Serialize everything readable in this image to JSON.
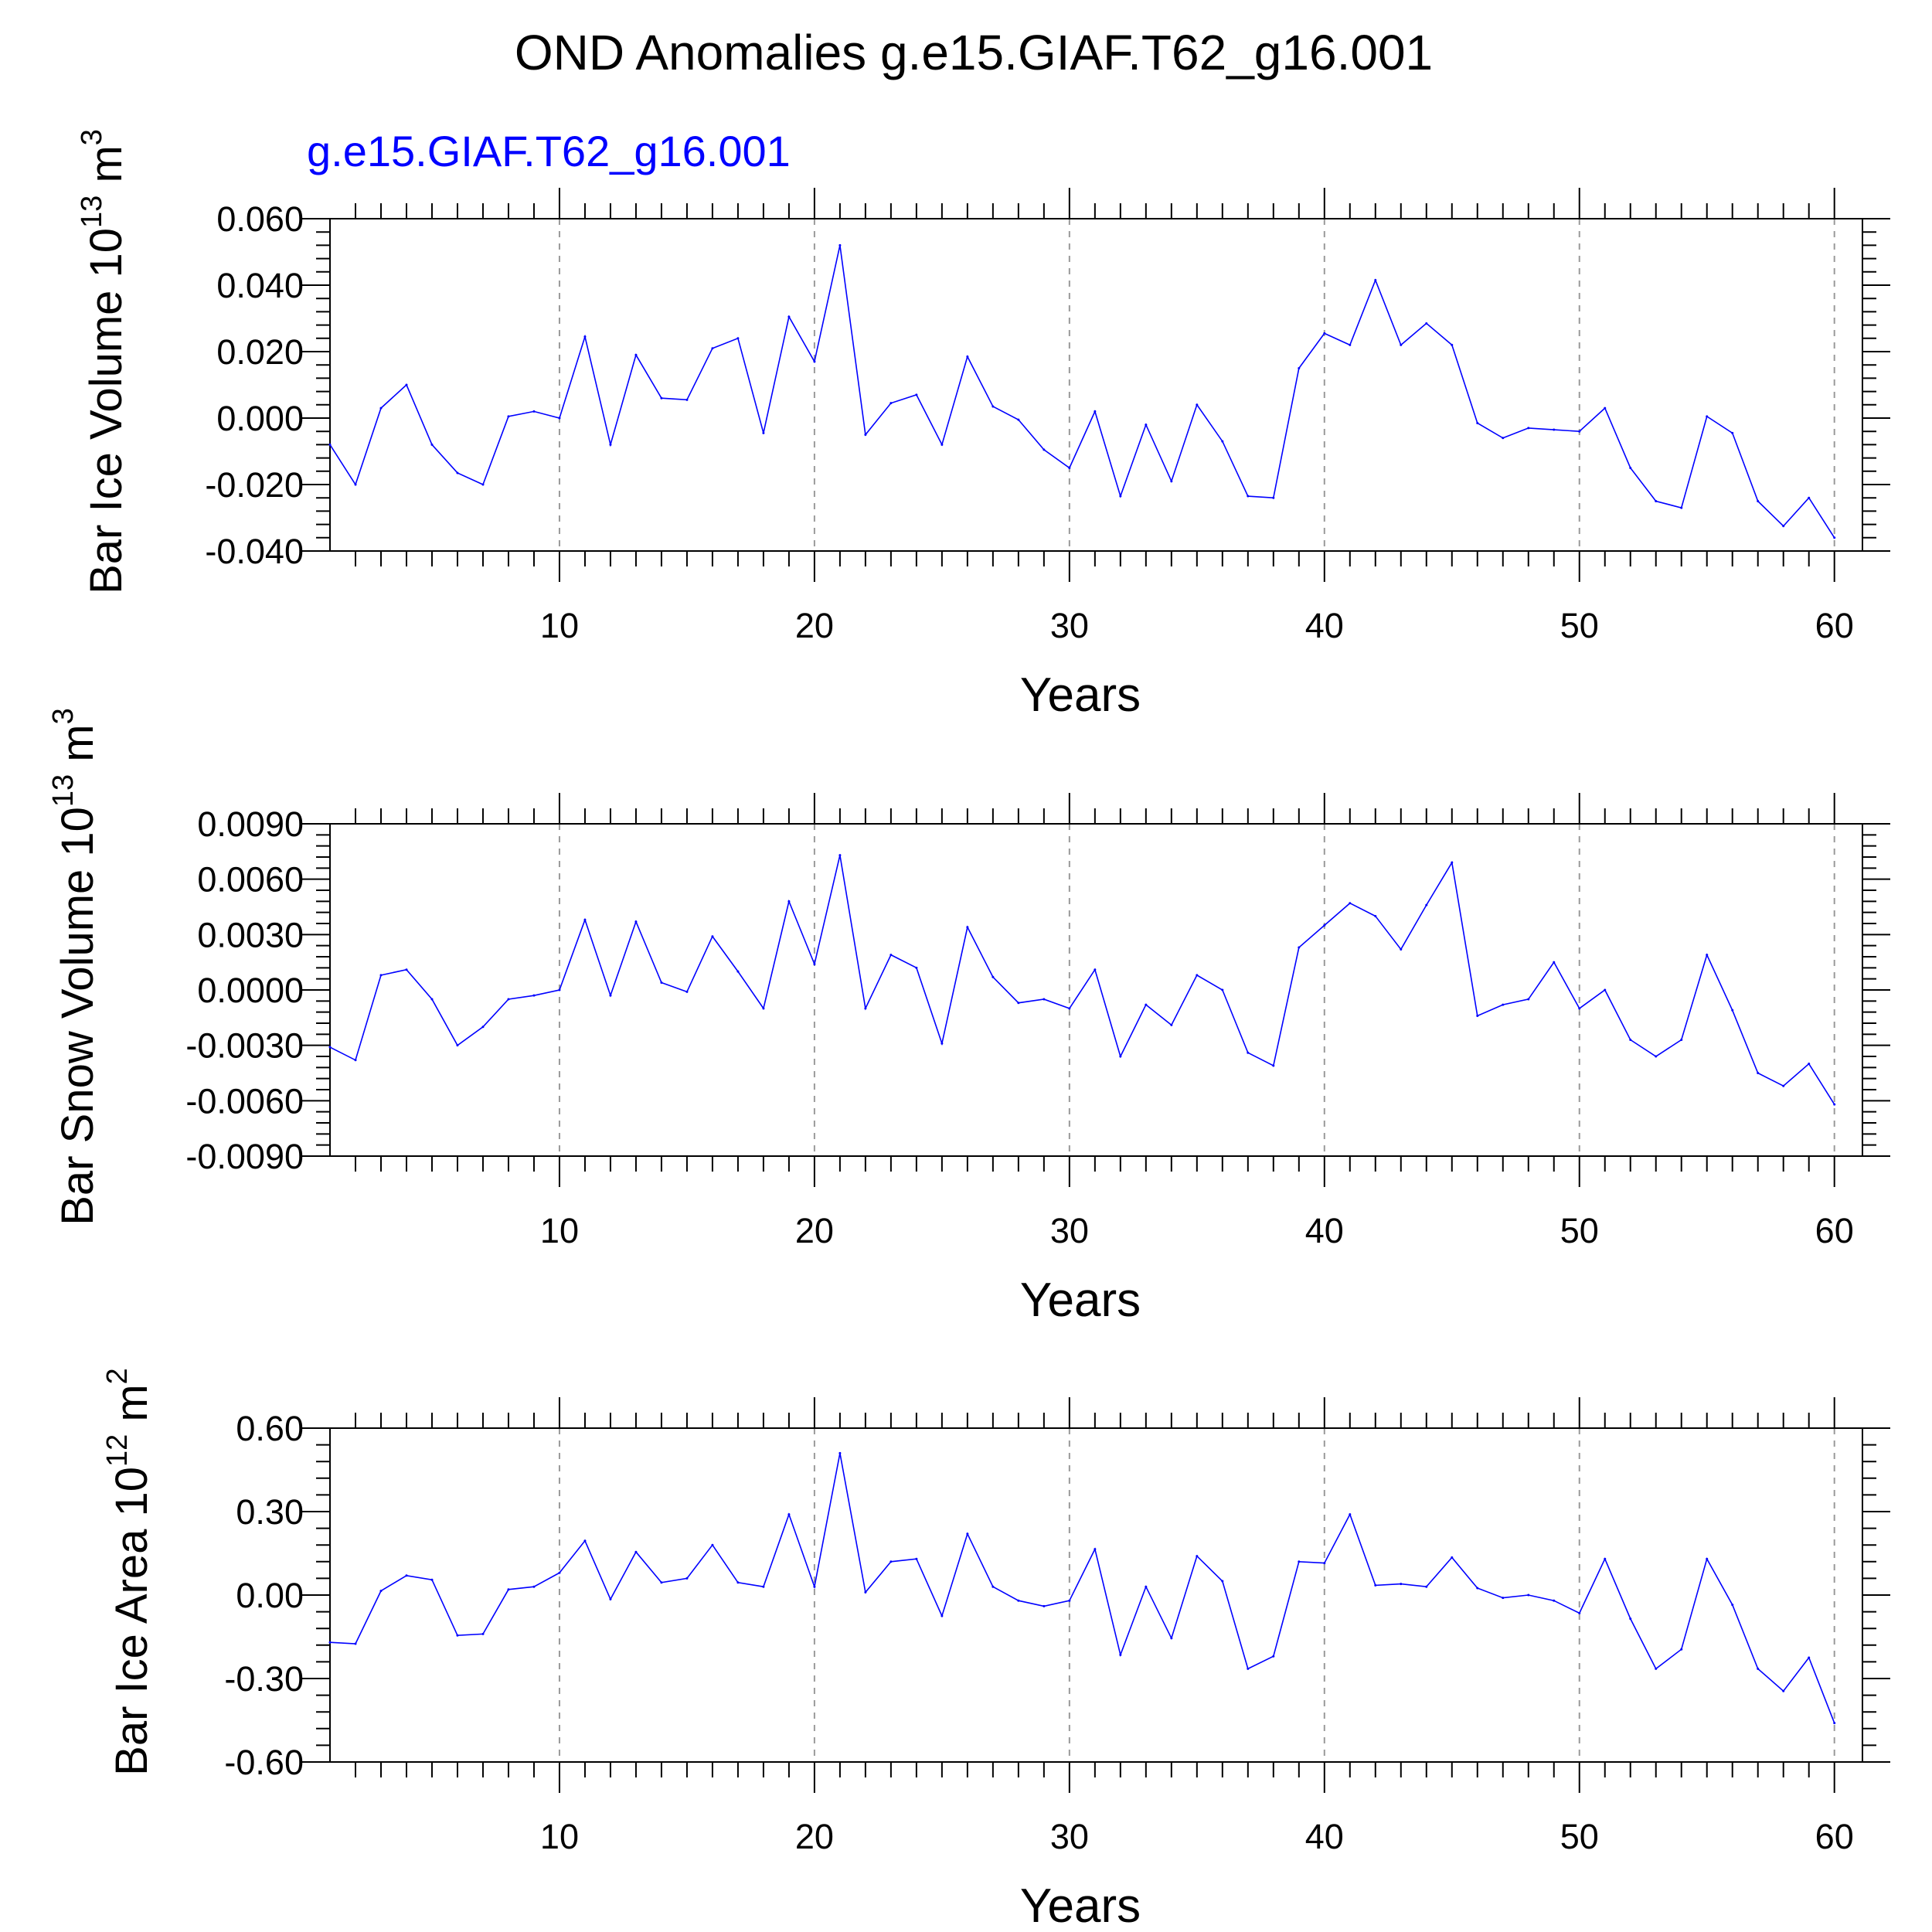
{
  "title": "OND Anomalies g.e15.GIAF.T62_g16.001",
  "subtitle": "g.e15.GIAF.T62_g16.001",
  "colors": {
    "series": "#0000ff",
    "grid": "#9a9a9a",
    "axis": "#000000"
  },
  "chart_data": [
    {
      "type": "line",
      "ylabel": {
        "base": "Bar Ice Volume 10",
        "exp": "13",
        "unit": " m",
        "unit_exp": "3"
      },
      "xlabel": "Years",
      "xlim": [
        1,
        60
      ],
      "ylim": [
        -0.04,
        0.06
      ],
      "yticks": [
        0.06,
        0.04,
        0.02,
        0.0,
        -0.02,
        -0.04
      ],
      "ytick_labels": [
        "0.060",
        "0.040",
        "0.020",
        "0.000",
        "-0.020",
        "-0.040"
      ],
      "xticks": [
        10,
        20,
        30,
        40,
        50,
        60
      ],
      "xtick_labels": [
        "10",
        "20",
        "30",
        "40",
        "50",
        "60"
      ],
      "grid": "vertical dashed at major x ticks",
      "series": [
        {
          "x": [
            1,
            2,
            3,
            4,
            5,
            6,
            7,
            8,
            9,
            10,
            11,
            12,
            13,
            14,
            15,
            16,
            17,
            18,
            19,
            20,
            21,
            22,
            23,
            24,
            25,
            26,
            27,
            28,
            29,
            30,
            31,
            32,
            33,
            34,
            35,
            36,
            37,
            38,
            39,
            40,
            41,
            42,
            43,
            44,
            45,
            46,
            47,
            48,
            49,
            50,
            51,
            52,
            53,
            54,
            55,
            56,
            57,
            58,
            59,
            60
          ],
          "values": [
            -0.008,
            -0.02,
            0.003,
            0.01,
            -0.008,
            -0.0165,
            -0.02,
            0.0005,
            0.002,
            0.0,
            0.0245,
            -0.008,
            0.019,
            0.006,
            0.0055,
            0.021,
            0.024,
            -0.0045,
            0.0305,
            0.017,
            0.052,
            -0.005,
            0.0045,
            0.007,
            -0.008,
            0.0185,
            0.0035,
            -0.0005,
            -0.0095,
            -0.015,
            0.002,
            -0.0235,
            -0.002,
            -0.019,
            0.004,
            -0.007,
            -0.0235,
            -0.024,
            0.015,
            0.0255,
            0.022,
            0.0415,
            0.022,
            0.0285,
            0.022,
            -0.0015,
            -0.006,
            -0.003,
            -0.0035,
            -0.004,
            0.003,
            -0.015,
            -0.025,
            -0.027,
            0.0005,
            -0.0045,
            -0.025,
            -0.0325,
            -0.024,
            -0.036
          ]
        }
      ]
    },
    {
      "type": "line",
      "ylabel": {
        "base": "Bar Snow Volume 10",
        "exp": "13",
        "unit": " m",
        "unit_exp": "3"
      },
      "xlabel": "Years",
      "xlim": [
        1,
        60
      ],
      "ylim": [
        -0.009,
        0.009
      ],
      "yticks": [
        0.009,
        0.006,
        0.003,
        0.0,
        -0.003,
        -0.006,
        -0.009
      ],
      "ytick_labels": [
        "0.0090",
        "0.0060",
        "0.0030",
        "0.0000",
        "-0.0030",
        "-0.0060",
        "-0.0090"
      ],
      "xticks": [
        10,
        20,
        30,
        40,
        50,
        60
      ],
      "xtick_labels": [
        "10",
        "20",
        "30",
        "40",
        "50",
        "60"
      ],
      "grid": "vertical dashed at major x ticks",
      "series": [
        {
          "x": [
            1,
            2,
            3,
            4,
            5,
            6,
            7,
            8,
            9,
            10,
            11,
            12,
            13,
            14,
            15,
            16,
            17,
            18,
            19,
            20,
            21,
            22,
            23,
            24,
            25,
            26,
            27,
            28,
            29,
            30,
            31,
            32,
            33,
            34,
            35,
            36,
            37,
            38,
            39,
            40,
            41,
            42,
            43,
            44,
            45,
            46,
            47,
            48,
            49,
            50,
            51,
            52,
            53,
            54,
            55,
            56,
            57,
            58,
            59,
            60
          ],
          "values": [
            -0.0031,
            -0.0038,
            0.0008,
            0.0011,
            -0.0005,
            -0.003,
            -0.002,
            -0.0005,
            -0.0003,
            0.0,
            0.0038,
            -0.0003,
            0.0037,
            0.0004,
            -0.0001,
            0.0029,
            0.001,
            -0.001,
            0.0048,
            0.0014,
            0.0073,
            -0.001,
            0.0019,
            0.0012,
            -0.0029,
            0.0034,
            0.0007,
            -0.0007,
            -0.0005,
            -0.001,
            0.0011,
            -0.0036,
            -0.0008,
            -0.0019,
            0.0008,
            0.0,
            -0.0034,
            -0.0041,
            0.0023,
            0.0035,
            0.0047,
            0.004,
            0.0022,
            0.0046,
            0.0069,
            -0.0014,
            -0.0008,
            -0.0005,
            0.0015,
            -0.001,
            0.0,
            -0.0027,
            -0.0036,
            -0.0027,
            0.0019,
            -0.0011,
            -0.0045,
            -0.0052,
            -0.004,
            -0.0062
          ]
        }
      ]
    },
    {
      "type": "line",
      "ylabel": {
        "base": "Bar Ice Area 10",
        "exp": "12",
        "unit": " m",
        "unit_exp": "2"
      },
      "xlabel": "Years",
      "xlim": [
        1,
        60
      ],
      "ylim": [
        -0.6,
        0.6
      ],
      "yticks": [
        0.6,
        0.3,
        0.0,
        -0.3,
        -0.6
      ],
      "ytick_labels": [
        "0.60",
        "0.30",
        "0.00",
        "-0.30",
        "-0.60"
      ],
      "xticks": [
        10,
        20,
        30,
        40,
        50,
        60
      ],
      "xtick_labels": [
        "10",
        "20",
        "30",
        "40",
        "50",
        "60"
      ],
      "grid": "vertical dashed at major x ticks",
      "series": [
        {
          "x": [
            1,
            2,
            3,
            4,
            5,
            6,
            7,
            8,
            9,
            10,
            11,
            12,
            13,
            14,
            15,
            16,
            17,
            18,
            19,
            20,
            21,
            22,
            23,
            24,
            25,
            26,
            27,
            28,
            29,
            30,
            31,
            32,
            33,
            34,
            35,
            36,
            37,
            38,
            39,
            40,
            41,
            42,
            43,
            44,
            45,
            46,
            47,
            48,
            49,
            50,
            51,
            52,
            53,
            54,
            55,
            56,
            57,
            58,
            59,
            60
          ],
          "values": [
            -0.17,
            -0.175,
            0.015,
            0.07,
            0.055,
            -0.145,
            -0.14,
            0.02,
            0.03,
            0.08,
            0.195,
            -0.015,
            0.155,
            0.045,
            0.06,
            0.18,
            0.045,
            0.03,
            0.29,
            0.03,
            0.51,
            0.01,
            0.12,
            0.13,
            -0.075,
            0.22,
            0.03,
            -0.02,
            -0.04,
            -0.02,
            0.165,
            -0.215,
            0.03,
            -0.155,
            0.14,
            0.05,
            -0.265,
            -0.22,
            0.12,
            0.115,
            0.29,
            0.035,
            0.04,
            0.03,
            0.135,
            0.025,
            -0.01,
            0.0,
            -0.02,
            -0.065,
            0.13,
            -0.085,
            -0.265,
            -0.195,
            0.13,
            -0.035,
            -0.265,
            -0.345,
            -0.225,
            -0.46
          ]
        }
      ]
    }
  ]
}
